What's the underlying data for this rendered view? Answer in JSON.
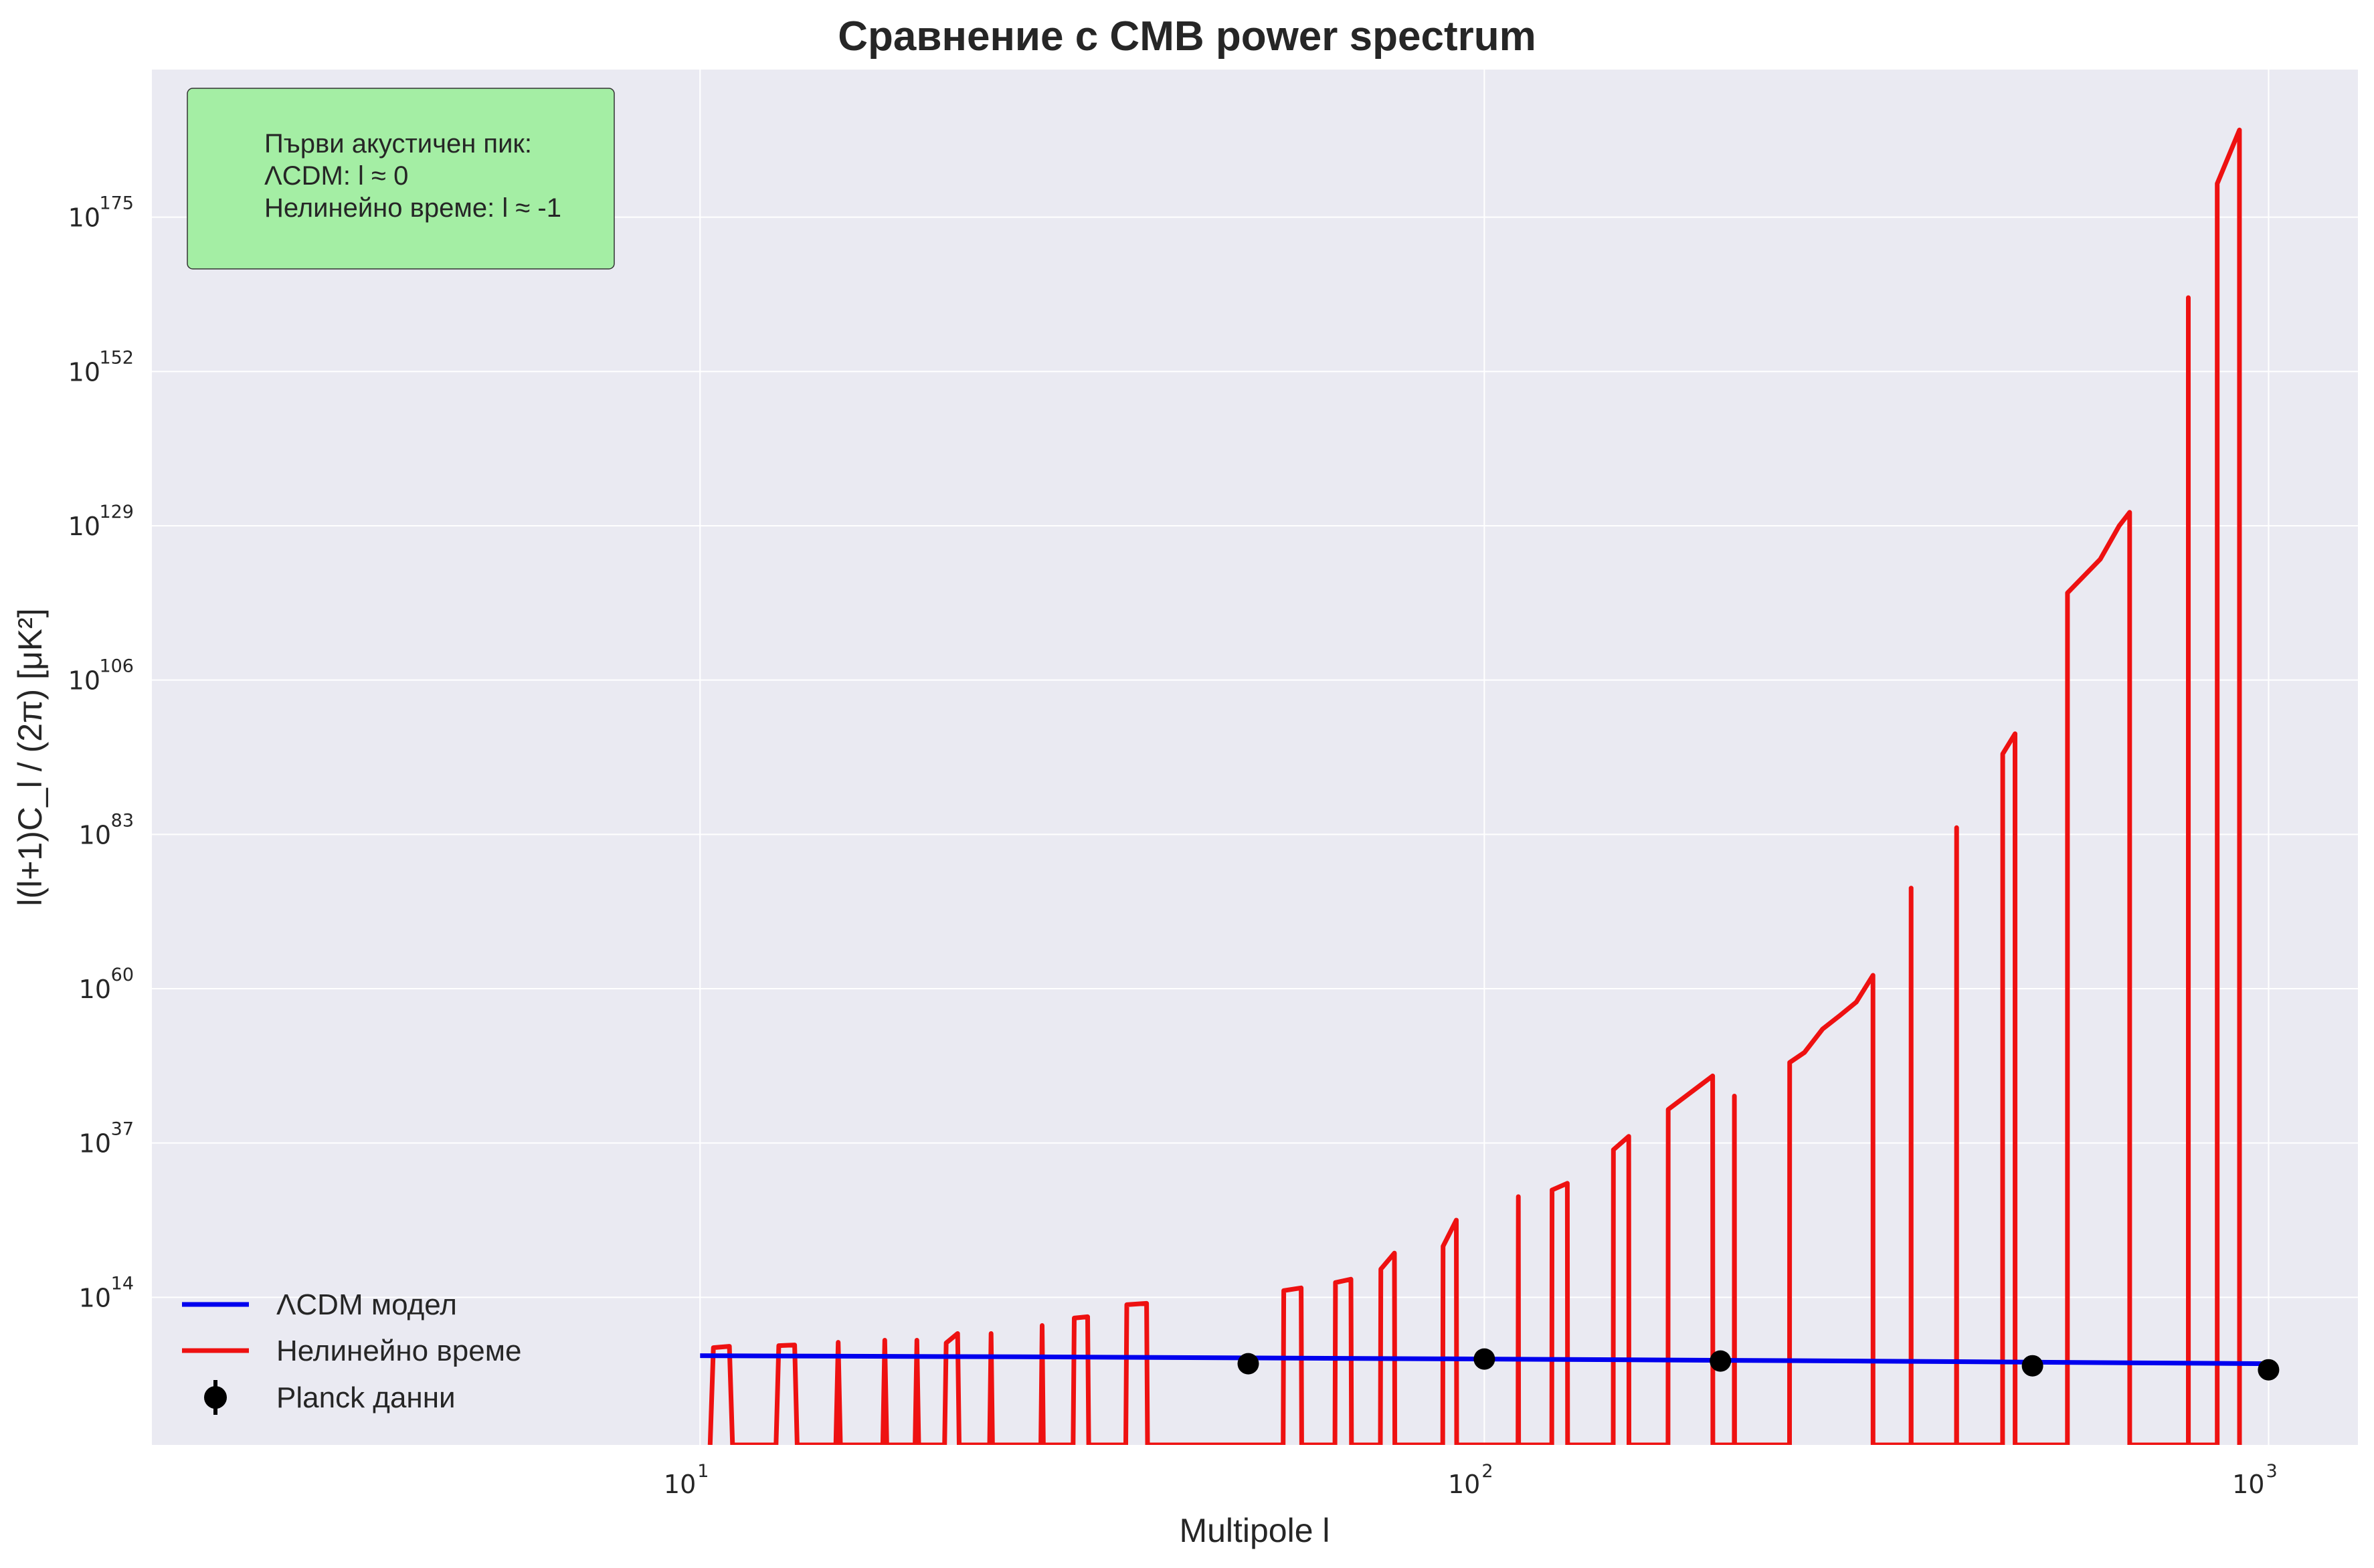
{
  "chart_data": {
    "type": "line",
    "title": "Сравнение с CMB power spectrum",
    "xlabel": "Multipole l",
    "ylabel": "l(l+1)C_l / (2π) [μK²]",
    "x_scale": "log",
    "y_scale": "log",
    "xlim": [
      2,
      1300
    ],
    "ylim_log10": [
      -8,
      197
    ],
    "x_ticks": [
      {
        "base": "10",
        "exp": "1",
        "value": 10
      },
      {
        "base": "10",
        "exp": "2",
        "value": 100
      },
      {
        "base": "10",
        "exp": "3",
        "value": 1000
      }
    ],
    "y_ticks": [
      {
        "base": "10",
        "exp": "14",
        "value_log10": 14
      },
      {
        "base": "10",
        "exp": "37",
        "value_log10": 37
      },
      {
        "base": "10",
        "exp": "60",
        "value_log10": 60
      },
      {
        "base": "10",
        "exp": "83",
        "value_log10": 83
      },
      {
        "base": "10",
        "exp": "106",
        "value_log10": 106
      },
      {
        "base": "10",
        "exp": "129",
        "value_log10": 129
      },
      {
        "base": "10",
        "exp": "152",
        "value_log10": 152
      },
      {
        "base": "10",
        "exp": "175",
        "value_log10": 175
      }
    ],
    "grid": true,
    "legend_position": "bottom-left",
    "series": [
      {
        "name": "ΛCDM модел",
        "color": "#0000ee",
        "kind": "line",
        "x": [
          10,
          30,
          100,
          300,
          1000
        ],
        "y_log10": [
          5.3,
          5.1,
          4.8,
          4.5,
          4.1
        ]
      },
      {
        "name": "Нелинейно време",
        "color": "#ee1111",
        "kind": "line",
        "x": [
          10.3,
          10.4,
          10.9,
          11.0,
          12.5,
          12.6,
          13.2,
          13.3,
          14.9,
          15.0,
          15.1,
          17.1,
          17.2,
          17.3,
          18.8,
          18.9,
          19.0,
          20.5,
          20.6,
          21.3,
          21.4,
          23.4,
          23.5,
          23.6,
          27.2,
          27.3,
          27.4,
          29.9,
          30.0,
          31.2,
          31.3,
          34.9,
          35.0,
          37.1,
          37.2,
          55.4,
          55.5,
          58.4,
          58.5,
          64.5,
          64.6,
          67.6,
          67.7,
          73.7,
          73.8,
          76.8,
          76.9,
          88.5,
          88.6,
          92.1,
          92.2,
          110.4,
          110.5,
          110.6,
          121.9,
          122.0,
          127.6,
          127.7,
          146.0,
          146.1,
          152.8,
          152.9,
          171.5,
          171.6,
          195.5,
          195.6,
          208.3,
          208.4,
          208.5,
          245.0,
          245.1,
          256.0,
          270.0,
          284.0,
          298.0,
          313.0,
          313.1,
          350.0,
          350.1,
          350.2,
          400.0,
          400.1,
          400.2,
          458.0,
          458.1,
          475.0,
          475.1,
          554.0,
          554.1,
          610.0,
          645.0,
          665.0,
          665.1,
          790.0,
          790.1,
          790.2,
          860.0,
          860.1,
          918.0,
          918.1
        ],
        "y_log10": [
          -8,
          6.5,
          6.7,
          -8,
          -8,
          6.8,
          6.9,
          -8,
          -8,
          7.3,
          -8,
          -8,
          7.6,
          -8,
          -8,
          7.6,
          -8,
          -8,
          7.2,
          8.6,
          -8,
          -8,
          8.6,
          -8,
          -8,
          9.8,
          -8,
          -8,
          10.9,
          11.1,
          -8,
          -8,
          12.9,
          13.1,
          -8,
          -8,
          15.0,
          15.4,
          -8,
          -8,
          16.2,
          16.7,
          -8,
          -8,
          18.2,
          20.6,
          -8,
          -8,
          21.6,
          25.5,
          -8,
          -8,
          29.0,
          -8,
          -8,
          30.0,
          31.0,
          -8,
          -8,
          36.0,
          38.0,
          -8,
          -8,
          42.0,
          47.0,
          -8,
          -8,
          44.0,
          -8,
          -8,
          49.0,
          50.5,
          54.0,
          56.0,
          58.0,
          62.0,
          -8,
          -8,
          75.0,
          -8,
          -8,
          84.0,
          -8,
          -8,
          95.0,
          98.0,
          -8,
          -8,
          119.0,
          124.0,
          129.0,
          131.0,
          -8,
          -8,
          163.0,
          -8,
          -8,
          180.0,
          188.0,
          -8
        ]
      },
      {
        "name": "Planck данни",
        "color": "#000000",
        "kind": "scatter_errorbar",
        "x": [
          50,
          100,
          200,
          500,
          1000
        ],
        "y_log10": [
          4.1,
          4.8,
          4.5,
          3.8,
          3.2
        ]
      }
    ],
    "annotation": {
      "lines": [
        "Първи акустичен пик:",
        "ΛCDM: l ≈ 0",
        "Нелинейно време: l ≈ -1"
      ],
      "background": "#a4eea4",
      "position": "top-left"
    }
  }
}
